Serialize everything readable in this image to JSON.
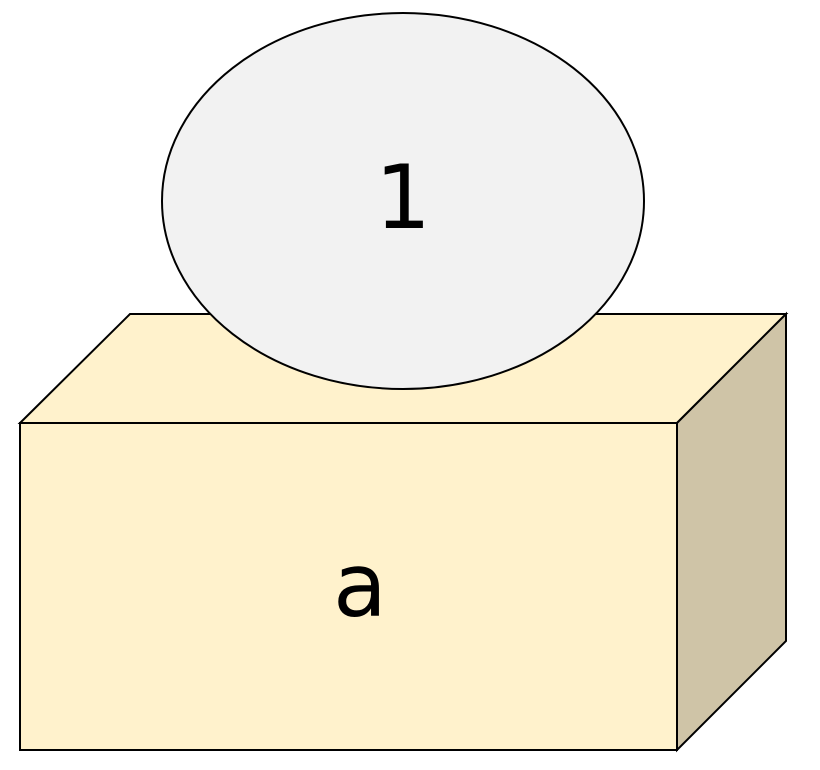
{
  "nodes": [
    {
      "label": "1"
    },
    {
      "label": "a"
    }
  ]
}
